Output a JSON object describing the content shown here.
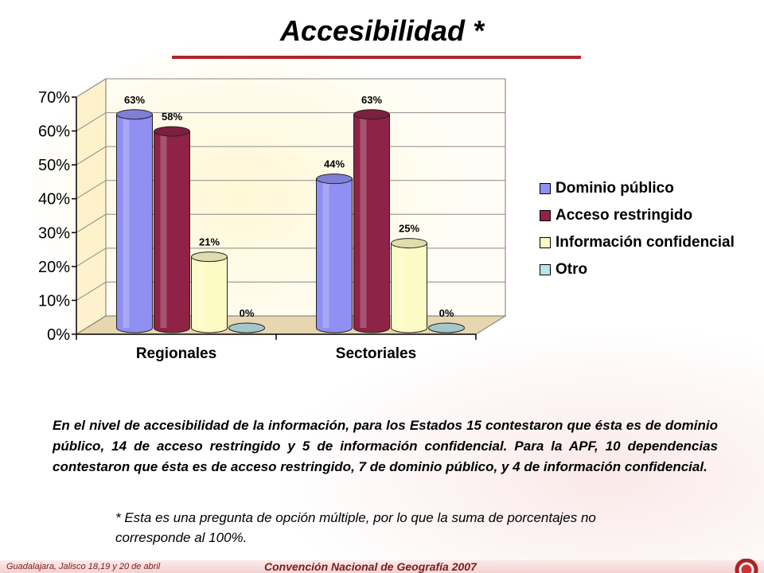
{
  "title": "Accesibilidad *",
  "chart_data": {
    "type": "bar",
    "categories": [
      "Regionales",
      "Sectoriales"
    ],
    "series": [
      {
        "name": "Dominio público",
        "values": [
          63,
          44
        ],
        "labels": [
          "63%",
          "44%"
        ],
        "color": "#8f90f2"
      },
      {
        "name": "Acceso restringido",
        "values": [
          58,
          63
        ],
        "labels": [
          "58%",
          "63%"
        ],
        "color": "#8e2347"
      },
      {
        "name": "Información confidencial",
        "values": [
          21,
          25
        ],
        "labels": [
          "21%",
          "25%"
        ],
        "color": "#fdfbc5"
      },
      {
        "name": "Otro",
        "values": [
          0,
          0
        ],
        "labels": [
          "0%",
          "0%"
        ],
        "color": "#b9e3e8"
      }
    ],
    "yticks": [
      "0%",
      "10%",
      "20%",
      "30%",
      "40%",
      "50%",
      "60%",
      "70%"
    ],
    "ylim": [
      0,
      70
    ],
    "grid": true,
    "legend_position": "right"
  },
  "description": "En el nivel de accesibilidad de la información, para los Estados 15 contestaron que ésta es de dominio público, 14 de acceso restringido y 5 de información confidencial.   Para la APF, 10 dependencias contestaron que ésta es de acceso restringido, 7 de dominio público, y 4 de información confidencial.",
  "note": "* Esta es una pregunta de opción múltiple, por lo que la suma de porcentajes no corresponde al 100%.",
  "footer": {
    "left": "Guadalajara, Jalisco 18,19 y 20 de abril",
    "center": "Convención Nacional de Geografía 2007"
  }
}
